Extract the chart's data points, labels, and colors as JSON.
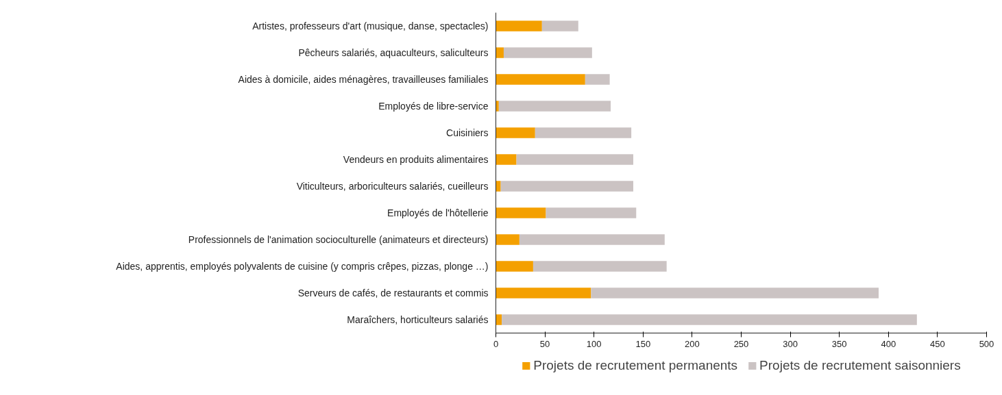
{
  "chart_data": {
    "type": "bar",
    "orientation": "horizontal",
    "stacked": true,
    "categories": [
      "Artistes, professeurs d'art (musique, danse, spectacles)",
      "Pêcheurs salariés, aquaculteurs, saliculteurs",
      "Aides à domicile, aides ménagères, travailleuses familiales",
      "Employés de libre-service",
      "Cuisiniers",
      "Vendeurs en produits alimentaires",
      "Viticulteurs, arboriculteurs salariés, cueilleurs",
      "Employés de l'hôtellerie",
      "Professionnels de l'animation socioculturelle (animateurs et directeurs)",
      "Aides, apprentis, employés polyvalents de cuisine (y compris crêpes, pizzas, plonge …)",
      "Serveurs de cafés, de restaurants et commis",
      "Maraîchers, horticulteurs salariés"
    ],
    "series": [
      {
        "name": "Projets de recrutement permanents",
        "color": "#f4a000",
        "values": [
          47,
          8,
          91,
          3,
          40,
          21,
          5,
          51,
          24,
          38,
          97,
          6
        ]
      },
      {
        "name": "Projets de recrutement saisonniers",
        "color": "#cbc3c3",
        "values": [
          37,
          90,
          25,
          114,
          98,
          119,
          135,
          92,
          148,
          136,
          293,
          423
        ]
      }
    ],
    "xlim": [
      0,
      500
    ],
    "xticks": [
      0,
      50,
      100,
      150,
      200,
      250,
      300,
      350,
      400,
      450,
      500
    ],
    "grid": false,
    "legend": "bottom"
  }
}
